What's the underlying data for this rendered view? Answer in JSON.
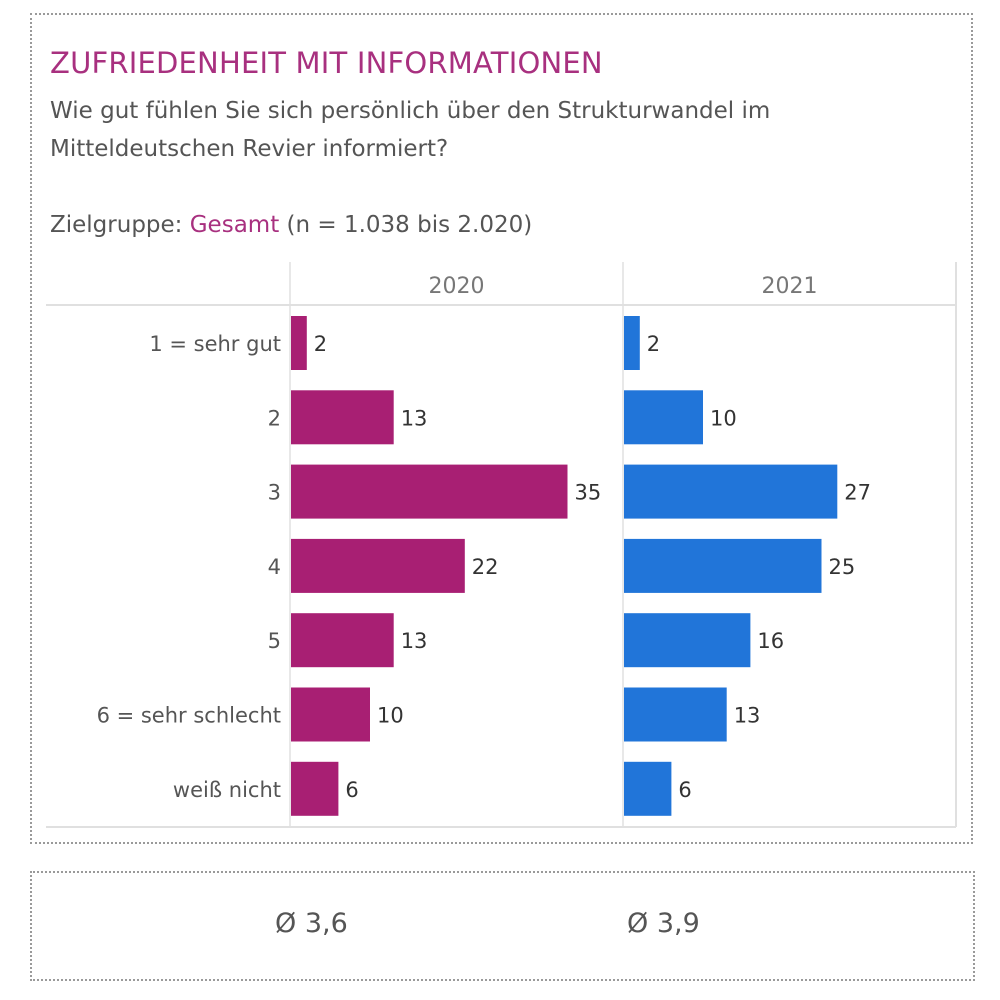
{
  "header": {
    "title": "ZUFRIEDENHEIT MIT INFORMATIONEN",
    "question": "Wie gut fühlen Sie sich persönlich über den Strukturwandel im Mitteldeutschen Revier informiert?",
    "target_label": "Zielgruppe:",
    "target_value": "Gesamt",
    "sample_note": "(n = 1.038 bis 2.020)"
  },
  "colors": {
    "accent": "#a8307f",
    "series_2020": "#a81f73",
    "series_2021": "#2175d9"
  },
  "chart_data": {
    "type": "bar",
    "orientation": "horizontal",
    "title": "ZUFRIEDENHEIT MIT INFORMATIONEN",
    "categories": [
      "1 = sehr gut",
      "2",
      "3",
      "4",
      "5",
      "6 = sehr schlecht",
      "weiß nicht"
    ],
    "series": [
      {
        "name": "2020",
        "values": [
          2,
          13,
          35,
          22,
          13,
          10,
          6
        ],
        "color": "#a81f73"
      },
      {
        "name": "2021",
        "values": [
          2,
          10,
          27,
          25,
          16,
          13,
          6
        ],
        "color": "#2175d9"
      }
    ],
    "xlim": [
      0,
      42
    ],
    "grid": false,
    "data_labels": true,
    "unit": "%"
  },
  "averages": [
    {
      "year": "2020",
      "label": "Ø 3,6"
    },
    {
      "year": "2021",
      "label": "Ø 3,9"
    }
  ]
}
